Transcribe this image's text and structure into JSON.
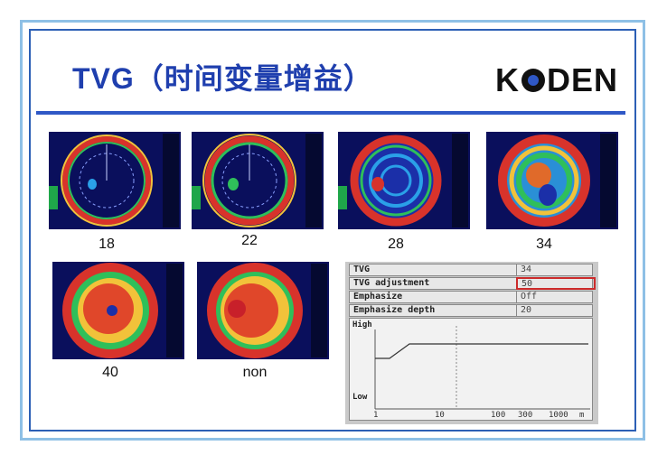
{
  "title": "TVG（时间变量增益）",
  "logo": "KODEN",
  "captions": [
    "18",
    "22",
    "28",
    "34",
    "40",
    "non"
  ],
  "tvg_panel": {
    "rows": [
      {
        "label": "TVG",
        "value": "34"
      },
      {
        "label": "TVG adjustment",
        "value": "50"
      },
      {
        "label": "Emphasize",
        "value": "Off"
      },
      {
        "label": "Emphasize depth",
        "value": "20"
      }
    ],
    "graph_high": "High",
    "graph_low": "Low",
    "axis_ticks": [
      "1",
      "10",
      "100",
      "300",
      "1000",
      "m"
    ]
  },
  "colors": {
    "title": "#1f3fae",
    "rule": "#2f58c6",
    "frame": "#8ec0e6",
    "highlight": "#cc2b2b"
  }
}
